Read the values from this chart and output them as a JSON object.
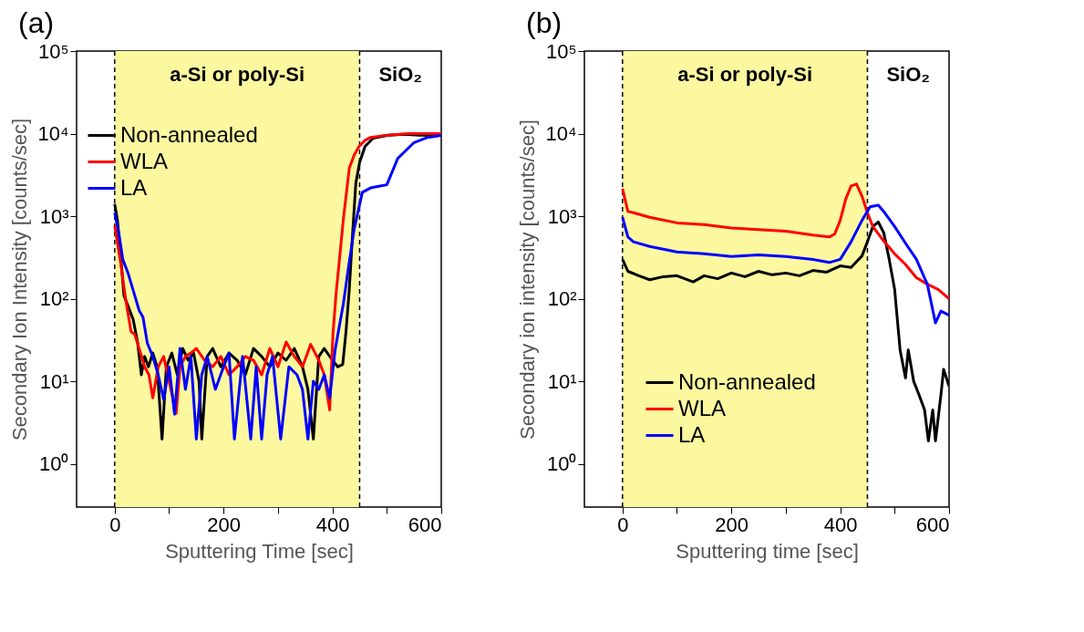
{
  "chart_data": [
    {
      "type": "line",
      "title": "(a)",
      "xlabel": "Sputtering Time [sec]",
      "ylabel": "Secondary Ion Intensity [counts/sec]",
      "log": "y",
      "grid": false,
      "legend": "top left",
      "xlim": [
        -70,
        600
      ],
      "xticks": [
        0,
        {
          "value": 100,
          "label": null
        },
        200,
        {
          "value": 300,
          "label": null
        },
        400,
        {
          "value": 500,
          "label": null
        },
        600
      ],
      "ylim": [
        0.3,
        100000
      ],
      "yticks": [
        {
          "value": 1,
          "label": "10⁰"
        },
        {
          "value": 10,
          "label": "10¹"
        },
        {
          "value": 100,
          "label": "10²"
        },
        {
          "value": 1000,
          "label": "10³"
        },
        {
          "value": 10000,
          "label": "10⁴"
        },
        {
          "value": 100000,
          "label": "10⁵"
        }
      ],
      "bands": [
        {
          "axis": "x",
          "from": 0,
          "to": 450,
          "label": "a-Si or poly-Si",
          "color": "#fcf8a0"
        }
      ],
      "ref_lines": [
        {
          "axis": "x",
          "value": 0,
          "line_style": "dashed",
          "color": "#000000"
        },
        {
          "axis": "x",
          "value": 450,
          "line_style": "dashed",
          "color": "#000000"
        }
      ],
      "annotations": [
        "SiO₂"
      ],
      "series": [
        {
          "name": "Non-annealed",
          "color": "#000000",
          "x": [
            0,
            5,
            10,
            17,
            25,
            34,
            42,
            49,
            55,
            62,
            70,
            78,
            87,
            95,
            105,
            115,
            125,
            135,
            145,
            155,
            160,
            170,
            180,
            195,
            210,
            225,
            240,
            255,
            270,
            285,
            300,
            315,
            330,
            345,
            355,
            365,
            375,
            385,
            400,
            410,
            419,
            425,
            431,
            437,
            443,
            450,
            460,
            475,
            500,
            530,
            560,
            600
          ],
          "values": [
            1400,
            900,
            400,
            110,
            80,
            56,
            30,
            12,
            20,
            15,
            22,
            15,
            2,
            15,
            22,
            12,
            25,
            18,
            22,
            10,
            2,
            20,
            25,
            15,
            22,
            18,
            12,
            25,
            20,
            15,
            22,
            18,
            25,
            15,
            8,
            2,
            20,
            25,
            18,
            15,
            16,
            40,
            130,
            600,
            2500,
            4500,
            7000,
            8800,
            9500,
            9800,
            9600,
            9500
          ]
        },
        {
          "name": "WLA",
          "color": "#ff0000",
          "x": [
            0,
            10,
            20,
            30,
            37,
            45,
            55,
            63,
            70,
            80,
            90,
            100,
            113,
            120,
            130,
            140,
            150,
            165,
            180,
            195,
            210,
            225,
            240,
            255,
            270,
            285,
            300,
            315,
            330,
            345,
            360,
            375,
            385,
            395,
            401,
            407,
            413,
            420,
            431,
            440,
            449,
            460,
            470,
            500,
            540,
            600
          ],
          "values": [
            770,
            300,
            100,
            40,
            37,
            25,
            15,
            12,
            6.3,
            15,
            20,
            10,
            4.1,
            15,
            20,
            22,
            25,
            18,
            15,
            20,
            12,
            15,
            20,
            18,
            12,
            25,
            15,
            30,
            20,
            15,
            28,
            18,
            12,
            4.5,
            37,
            120,
            300,
            900,
            3800,
            5500,
            7000,
            8300,
            9000,
            9600,
            10000,
            10000
          ]
        },
        {
          "name": "LA",
          "color": "#0000ff",
          "x": [
            0,
            8,
            15,
            25,
            35,
            45,
            52,
            60,
            70,
            80,
            90,
            100,
            110,
            120,
            130,
            140,
            150,
            160,
            170,
            185,
            200,
            210,
            220,
            235,
            250,
            260,
            270,
            280,
            290,
            305,
            320,
            335,
            345,
            355,
            365,
            375,
            385,
            395,
            405,
            420,
            430,
            440,
            455,
            470,
            485,
            500,
            520,
            550,
            575,
            600
          ],
          "values": [
            1100,
            600,
            300,
            200,
            120,
            72,
            60,
            29,
            20,
            12,
            6,
            15,
            4,
            25,
            8,
            20,
            2,
            12,
            20,
            8,
            15,
            22,
            2,
            20,
            2,
            15,
            2,
            12,
            20,
            2,
            15,
            12,
            8,
            2,
            10,
            8,
            12,
            6.3,
            24,
            86,
            250,
            700,
            1950,
            2200,
            2300,
            2400,
            5000,
            7800,
            9000,
            9500
          ]
        }
      ]
    },
    {
      "type": "line",
      "title": "(b)",
      "xlabel": "Sputtering time [sec]",
      "ylabel": "Secondary ion intensity [counts/sec]",
      "log": "y",
      "grid": false,
      "legend": "bottom left",
      "xlim": [
        -70,
        600
      ],
      "xticks": [
        0,
        {
          "value": 100,
          "label": null
        },
        200,
        {
          "value": 300,
          "label": null
        },
        400,
        {
          "value": 500,
          "label": null
        },
        600
      ],
      "ylim": [
        0.3,
        100000
      ],
      "yticks": [
        {
          "value": 1,
          "label": "10⁰"
        },
        {
          "value": 10,
          "label": "10¹"
        },
        {
          "value": 100,
          "label": "10²"
        },
        {
          "value": 1000,
          "label": "10³"
        },
        {
          "value": 10000,
          "label": "10⁴"
        },
        {
          "value": 100000,
          "label": "10⁵"
        }
      ],
      "bands": [
        {
          "axis": "x",
          "from": 0,
          "to": 450,
          "label": "a-Si or poly-Si",
          "color": "#fcf8a0"
        }
      ],
      "ref_lines": [
        {
          "axis": "x",
          "value": 0,
          "line_style": "dashed",
          "color": "#000000"
        },
        {
          "axis": "x",
          "value": 450,
          "line_style": "dashed",
          "color": "#000000"
        }
      ],
      "annotations": [
        "SiO₂"
      ],
      "series": [
        {
          "name": "Non-annealed",
          "color": "#000000",
          "x": [
            0,
            10,
            30,
            50,
            75,
            100,
            130,
            150,
            175,
            200,
            225,
            250,
            275,
            300,
            325,
            350,
            375,
            400,
            420,
            440,
            450,
            460,
            470,
            480,
            490,
            500,
            510,
            520,
            525,
            535,
            545,
            555,
            562,
            570,
            575,
            585,
            590,
            600
          ],
          "values": [
            300,
            215,
            190,
            170,
            185,
            190,
            160,
            190,
            175,
            205,
            185,
            215,
            195,
            205,
            190,
            220,
            210,
            250,
            240,
            330,
            490,
            750,
            850,
            630,
            300,
            130,
            24,
            11,
            24,
            10,
            6.8,
            4.5,
            1.9,
            4.5,
            1.9,
            6.8,
            14,
            8.7
          ]
        },
        {
          "name": "WLA",
          "color": "#ff0000",
          "x": [
            0,
            10,
            20,
            50,
            100,
            150,
            200,
            250,
            300,
            350,
            380,
            390,
            400,
            410,
            420,
            430,
            440,
            450,
            460,
            480,
            500,
            520,
            540,
            560,
            580,
            600
          ],
          "values": [
            2150,
            1140,
            1100,
            970,
            830,
            790,
            720,
            690,
            660,
            590,
            560,
            610,
            890,
            1600,
            2330,
            2450,
            1750,
            1100,
            750,
            500,
            350,
            260,
            180,
            150,
            130,
            100
          ]
        },
        {
          "name": "LA",
          "color": "#0000ff",
          "x": [
            0,
            10,
            20,
            50,
            100,
            150,
            200,
            250,
            300,
            350,
            380,
            400,
            420,
            440,
            455,
            470,
            480,
            500,
            520,
            540,
            560,
            575,
            585,
            600
          ],
          "values": [
            970,
            560,
            490,
            430,
            370,
            350,
            325,
            340,
            325,
            300,
            275,
            300,
            490,
            890,
            1300,
            1360,
            1140,
            750,
            470,
            300,
            150,
            51,
            71,
            63
          ]
        }
      ]
    }
  ]
}
